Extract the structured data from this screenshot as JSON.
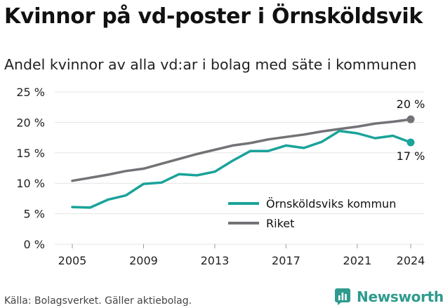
{
  "title": "Kvinnor på vd-poster i Örnsköldsvik",
  "subtitle": "Andel kvinnor av alla vd:ar i bolag med säte i kommunen",
  "footer": "Källa: Bolagsverket. Gäller aktiebolag.",
  "brand": {
    "name": "Newsworthy",
    "icon": "newsworthy-logo-icon",
    "color": "#2e9b8e"
  },
  "chart_data": {
    "type": "line",
    "title": "",
    "xlabel": "",
    "ylabel": "",
    "xlim": [
      2005,
      2024
    ],
    "ylim": [
      0,
      25
    ],
    "x_ticks": [
      2005,
      2009,
      2013,
      2017,
      2021,
      2024
    ],
    "y_ticks": [
      0,
      5,
      10,
      15,
      20,
      25
    ],
    "y_tick_labels": [
      "0 %",
      "5 %",
      "10 %",
      "15 %",
      "20 %",
      "25 %"
    ],
    "grid": "horizontal",
    "legend_position": "bottom-right",
    "x": [
      2005,
      2006,
      2007,
      2008,
      2009,
      2010,
      2011,
      2012,
      2013,
      2014,
      2015,
      2016,
      2017,
      2018,
      2019,
      2020,
      2021,
      2022,
      2023,
      2024
    ],
    "series": [
      {
        "name": "Örnsköldsviks kommun",
        "color": "#1aa39a",
        "values": [
          6.1,
          6.0,
          7.3,
          8.0,
          9.9,
          10.1,
          11.5,
          11.3,
          11.9,
          13.7,
          15.3,
          15.3,
          16.2,
          15.8,
          16.8,
          18.6,
          18.2,
          17.4,
          17.8,
          16.7
        ],
        "end_label": "17 %"
      },
      {
        "name": "Riket",
        "color": "#737276",
        "values": [
          10.4,
          10.9,
          11.4,
          12.0,
          12.4,
          13.2,
          14.0,
          14.8,
          15.5,
          16.2,
          16.6,
          17.2,
          17.6,
          18.0,
          18.5,
          18.9,
          19.3,
          19.8,
          20.1,
          20.5
        ],
        "end_label": "20 %"
      }
    ]
  }
}
